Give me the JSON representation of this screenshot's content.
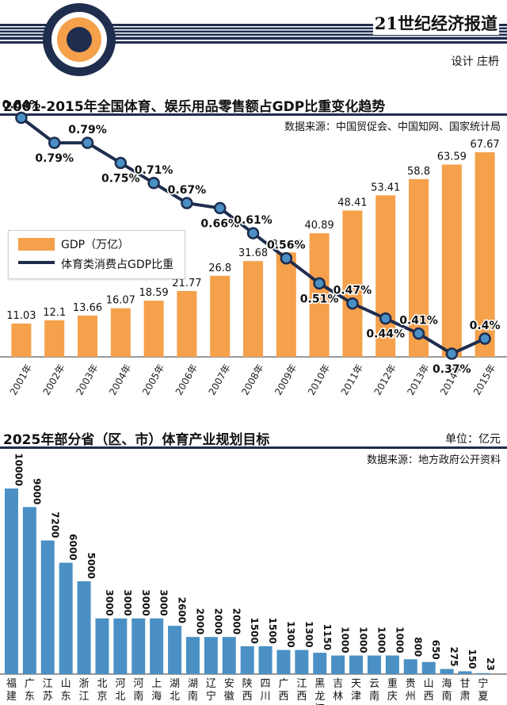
{
  "header": {
    "brand": "21世纪经济报道",
    "credit": "设计 庄枬",
    "colors": {
      "navy": "#1F2D4E",
      "orange": "#F5A04B",
      "blue": "#4A90C4"
    }
  },
  "chart_data": [
    {
      "type": "bar",
      "title": "2001-2015年全国体育、娱乐用品零售额占GDP比重变化趋势",
      "source": "数据来源：中国贸促会、中国知网、国家统计局",
      "categories": [
        "2001年",
        "2002年",
        "2003年",
        "2004年",
        "2005年",
        "2006年",
        "2007年",
        "2008年",
        "2009年",
        "2010年",
        "2011年",
        "2012年",
        "2013年",
        "2014年",
        "2015年"
      ],
      "series": [
        {
          "name": "GDP（万亿）",
          "type": "bar",
          "color": "#F5A04B",
          "values": [
            11.03,
            12.1,
            13.66,
            16.07,
            18.59,
            21.77,
            26.8,
            31.68,
            34.56,
            40.89,
            48.41,
            53.41,
            58.8,
            63.59,
            67.67
          ],
          "labels": [
            "11.03",
            "12.1",
            "13.66",
            "16.07",
            "18.59",
            "21.77",
            "26.8",
            "31.68",
            "34.56",
            "40.89",
            "48.41",
            "53.41",
            "58.8",
            "63.59",
            "67.67"
          ]
        },
        {
          "name": "体育类消费占GDP比重",
          "type": "line",
          "color": "#1F2D4E",
          "values": [
            0.84,
            0.79,
            0.79,
            0.75,
            0.71,
            0.67,
            0.66,
            0.61,
            0.56,
            0.51,
            0.47,
            0.44,
            0.41,
            0.37,
            0.4
          ],
          "labels": [
            "0.84%",
            "0.79%",
            "0.79%",
            "0.75%",
            "0.71%",
            "0.67%",
            "0.66%",
            "0.61%",
            "0.56%",
            "0.51%",
            "0.47%",
            "0.44%",
            "0.41%",
            "0.37%",
            "0.4%"
          ]
        }
      ],
      "ylim_bar": [
        0,
        70
      ],
      "ylim_line": [
        0.35,
        0.85
      ],
      "legend": "left"
    },
    {
      "type": "bar",
      "title": "2025年部分省（区、市）体育产业规划目标",
      "unit": "单位：亿元",
      "source": "数据来源：地方政府公开资料",
      "categories": [
        "福建",
        "广东",
        "江苏",
        "山东",
        "浙江",
        "北京",
        "河北",
        "河南",
        "上海",
        "湖北",
        "湖南",
        "辽宁",
        "安徽",
        "陕西",
        "四川",
        "广西",
        "江西",
        "黑龙江",
        "吉林",
        "天津",
        "云南",
        "重庆",
        "贵州",
        "山西",
        "海南",
        "甘肃",
        "宁夏"
      ],
      "values": [
        10000,
        9000,
        7200,
        6000,
        5000,
        3000,
        3000,
        3000,
        3000,
        2600,
        2000,
        2000,
        2000,
        1500,
        1500,
        1300,
        1300,
        1150,
        1000,
        1000,
        1000,
        1000,
        800,
        650,
        275,
        150,
        23
      ],
      "labels": [
        "10000",
        "9000",
        "7200",
        "6000",
        "5000",
        "3000",
        "3000",
        "3000",
        "3000",
        "2600",
        "2000",
        "2000",
        "2000",
        "1500",
        "1500",
        "1300",
        "1300",
        "1150",
        "1000",
        "1000",
        "1000",
        "1000",
        "800",
        "650",
        "275",
        "150",
        "23"
      ],
      "ylim": [
        0,
        10000
      ],
      "color": "#4A90C4"
    }
  ]
}
